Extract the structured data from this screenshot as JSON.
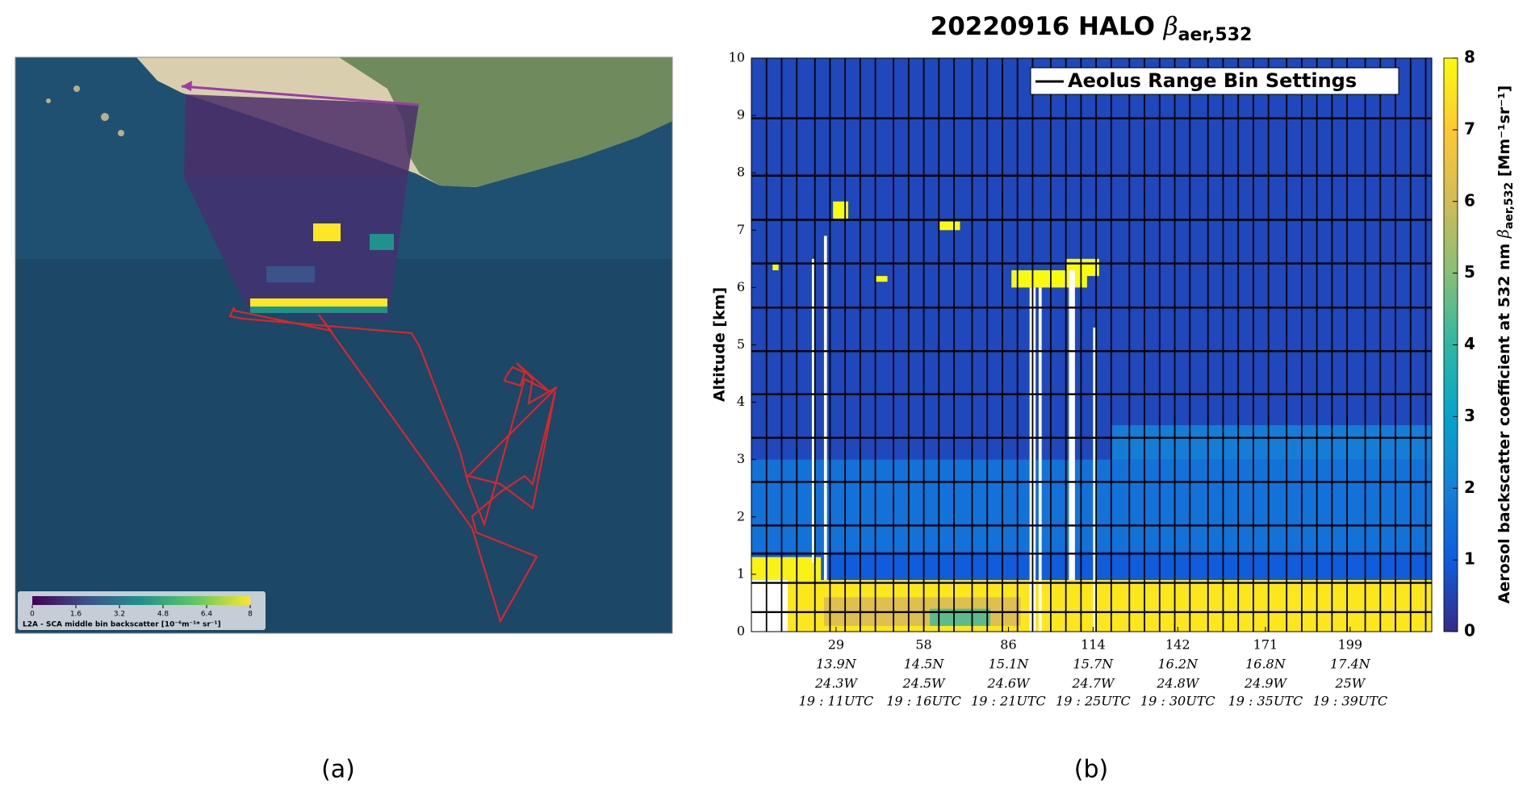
{
  "panel_labels": [
    "(a)",
    "(b)"
  ],
  "map_panel": {
    "colorbar_ticks": [
      0,
      1.6,
      3.2,
      4.8,
      6.4,
      8
    ],
    "colorbar_label": "L2A - SCA middle bin backscatter [10⁻⁶m⁻¹* sr⁻¹]",
    "colormap": [
      "#440154",
      "#3b528b",
      "#21918c",
      "#5ec962",
      "#fde725"
    ]
  },
  "chart_data": {
    "type": "heatmap",
    "title": {
      "text": "20220916 HALO ",
      "symbol": "β",
      "subscript": "aer,532"
    },
    "y_label": "Altitude [km]",
    "ylim": [
      0,
      10
    ],
    "yticks": [
      0,
      1,
      2,
      3,
      4,
      5,
      6,
      7,
      8,
      9,
      10
    ],
    "xlim": [
      1,
      226
    ],
    "xticks": [
      {
        "value": 29,
        "label": "29",
        "lat": "13.9N",
        "lon": "24.3W",
        "time": "19 : 11UTC"
      },
      {
        "value": 58,
        "label": "58",
        "lat": "14.5N",
        "lon": "24.5W",
        "time": "19 : 16UTC"
      },
      {
        "value": 86,
        "label": "86",
        "lat": "15.1N",
        "lon": "24.6W",
        "time": "19 : 21UTC"
      },
      {
        "value": 114,
        "label": "114",
        "lat": "15.7N",
        "lon": "24.7W",
        "time": "19 : 25UTC"
      },
      {
        "value": 142,
        "label": "142",
        "lat": "16.2N",
        "lon": "24.8W",
        "time": "19 : 30UTC"
      },
      {
        "value": 171,
        "label": "171",
        "lat": "16.8N",
        "lon": "24.9W",
        "time": "19 : 35UTC"
      },
      {
        "value": 199,
        "label": "199",
        "lat": "17.4N",
        "lon": "25W",
        "time": "19 : 39UTC"
      }
    ],
    "legend": "Aeolus Range Bin Settings",
    "range_bin_altitudes": [
      0.34,
      0.85,
      1.36,
      1.85,
      2.61,
      3.38,
      4.14,
      4.89,
      5.65,
      6.42,
      7.18,
      7.95,
      8.95
    ],
    "profile_edges": [
      6,
      11,
      16,
      22,
      27,
      32,
      37,
      42,
      48,
      53,
      58,
      63,
      68,
      74,
      79,
      84,
      89,
      94,
      100,
      105,
      110,
      115,
      120,
      126,
      131,
      136,
      141,
      146,
      152,
      157,
      162,
      167,
      172,
      178,
      183,
      188,
      193,
      198,
      204,
      209,
      214,
      219,
      224
    ],
    "cells": [
      {
        "x": [
          1,
          226
        ],
        "alt": [
          0,
          10
        ],
        "value": 0.6
      },
      {
        "x": [
          1,
          226
        ],
        "alt": [
          1.4,
          3.0
        ],
        "value": 1.6
      },
      {
        "x": [
          120,
          226
        ],
        "alt": [
          3.0,
          3.6
        ],
        "value": 1.9
      },
      {
        "x": [
          1,
          226
        ],
        "alt": [
          0.9,
          1.4
        ],
        "value": 1.0
      },
      {
        "x": [
          1,
          226
        ],
        "alt": [
          0,
          0.9
        ],
        "value": 7.6
      },
      {
        "x": [
          1,
          24
        ],
        "alt": [
          0.9,
          1.3
        ],
        "value": 7.8
      },
      {
        "x": [
          25,
          90
        ],
        "alt": [
          0.1,
          0.6
        ],
        "value": 6.3
      },
      {
        "x": [
          60,
          80
        ],
        "alt": [
          0.1,
          0.4
        ],
        "value": 4.5
      },
      {
        "x": [
          28,
          33
        ],
        "alt": [
          7.2,
          7.5
        ],
        "value": 8
      },
      {
        "x": [
          63,
          70
        ],
        "alt": [
          7.0,
          7.15
        ],
        "value": 8
      },
      {
        "x": [
          42,
          46
        ],
        "alt": [
          6.1,
          6.2
        ],
        "value": 8
      },
      {
        "x": [
          87,
          112
        ],
        "alt": [
          6.0,
          6.3
        ],
        "value": 8
      },
      {
        "x": [
          105,
          116
        ],
        "alt": [
          6.2,
          6.5
        ],
        "value": 8
      },
      {
        "x": [
          8,
          10
        ],
        "alt": [
          6.3,
          6.4
        ],
        "value": 8
      },
      {
        "x": [
          1,
          13
        ],
        "alt": [
          0,
          0.9
        ],
        "value": null
      },
      {
        "x": [
          21,
          22
        ],
        "alt": [
          1.2,
          6.5
        ],
        "value": null
      },
      {
        "x": [
          25,
          26
        ],
        "alt": [
          0.9,
          6.9
        ],
        "value": null
      },
      {
        "x": [
          93,
          95
        ],
        "alt": [
          0,
          6.0
        ],
        "value": null
      },
      {
        "x": [
          96,
          97
        ],
        "alt": [
          0,
          6.0
        ],
        "value": null
      },
      {
        "x": [
          106,
          108
        ],
        "alt": [
          0.9,
          6.3
        ],
        "value": null
      },
      {
        "x": [
          114,
          115
        ],
        "alt": [
          0,
          5.3
        ],
        "value": null
      }
    ],
    "colorbar_ticks": [
      0,
      1,
      2,
      3,
      4,
      5,
      6,
      7,
      8
    ],
    "colorbar_label": {
      "text": "Aerosol backscatter coefficient at 532 nm ",
      "symbol": "β",
      "subscript": "aer,532",
      "unit": " [Mm⁻¹sr⁻¹]"
    },
    "colormap": [
      "#352a87",
      "#0f5cdd",
      "#1481d6",
      "#06a4ca",
      "#2eb7a4",
      "#87bf77",
      "#d1bb59",
      "#fec832",
      "#f9fb0e"
    ],
    "grid_color": "#000000"
  }
}
